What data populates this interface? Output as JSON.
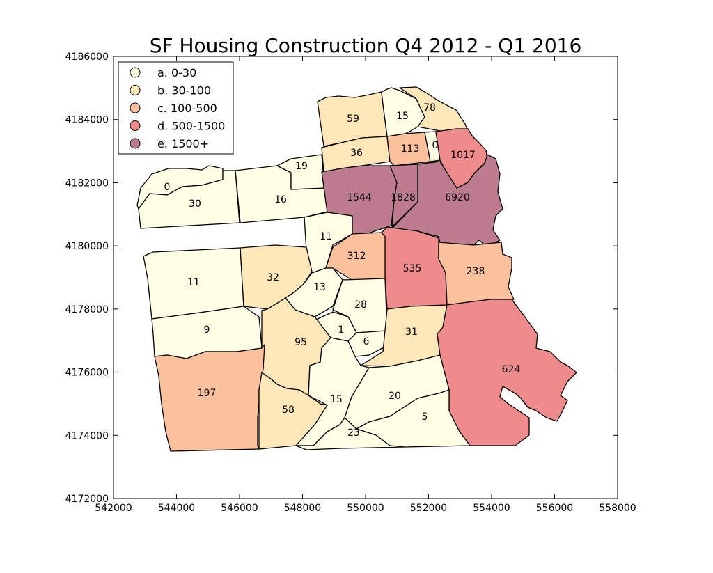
{
  "title": "SF Housing Construction Q4 2012 - Q1 2016",
  "colors": {
    "a": "#ffffe6",
    "b": "#fde7b8",
    "c": "#fbc19c",
    "d": "#ef8b8b",
    "e": "#bd7b8f",
    "outline": "#000000"
  },
  "legend": {
    "placement": "top-left",
    "items": [
      {
        "key": "a",
        "label": "a. 0-30"
      },
      {
        "key": "b",
        "label": "b. 30-100"
      },
      {
        "key": "c",
        "label": "c. 100-500"
      },
      {
        "key": "d",
        "label": "d. 500-1500"
      },
      {
        "key": "e",
        "label": "e. 1500+"
      }
    ]
  },
  "axes": {
    "xlim": [
      542000,
      558000
    ],
    "ylim": [
      4172000,
      4186000
    ],
    "x_ticks": [
      "542000",
      "544000",
      "546000",
      "548000",
      "550000",
      "552000",
      "554000",
      "556000",
      "558000"
    ],
    "y_ticks": [
      "4172000",
      "4174000",
      "4176000",
      "4178000",
      "4180000",
      "4182000",
      "4184000",
      "4186000"
    ]
  },
  "chart_data": {
    "type": "choropleth",
    "title": "SF Housing Construction Q4 2012 - Q1 2016",
    "xlim": [
      542000,
      558000
    ],
    "ylim": [
      4172000,
      4186000
    ],
    "regions": [
      {
        "value": "0",
        "class": "a"
      },
      {
        "value": "30",
        "class": "a"
      },
      {
        "value": "16",
        "class": "a"
      },
      {
        "value": "19",
        "class": "a"
      },
      {
        "value": "59",
        "class": "b"
      },
      {
        "value": "15",
        "class": "a"
      },
      {
        "value": "78",
        "class": "b"
      },
      {
        "value": "36",
        "class": "b"
      },
      {
        "value": "113",
        "class": "c"
      },
      {
        "value": "0",
        "class": "a"
      },
      {
        "value": "1017",
        "class": "d"
      },
      {
        "value": "1544",
        "class": "e"
      },
      {
        "value": "1828",
        "class": "e"
      },
      {
        "value": "6920",
        "class": "e"
      },
      {
        "value": "11",
        "class": "a"
      },
      {
        "value": "312",
        "class": "c"
      },
      {
        "value": "535",
        "class": "d"
      },
      {
        "value": "238",
        "class": "c"
      },
      {
        "value": "11",
        "class": "a"
      },
      {
        "value": "32",
        "class": "b"
      },
      {
        "value": "13",
        "class": "a"
      },
      {
        "value": "28",
        "class": "a"
      },
      {
        "value": "9",
        "class": "a"
      },
      {
        "value": "1",
        "class": "a"
      },
      {
        "value": "95",
        "class": "b"
      },
      {
        "value": "6",
        "class": "a"
      },
      {
        "value": "31",
        "class": "b"
      },
      {
        "value": "624",
        "class": "d"
      },
      {
        "value": "197",
        "class": "c"
      },
      {
        "value": "58",
        "class": "b"
      },
      {
        "value": "15",
        "class": "a"
      },
      {
        "value": "20",
        "class": "a"
      },
      {
        "value": "5",
        "class": "a"
      },
      {
        "value": "23",
        "class": "a"
      }
    ]
  }
}
